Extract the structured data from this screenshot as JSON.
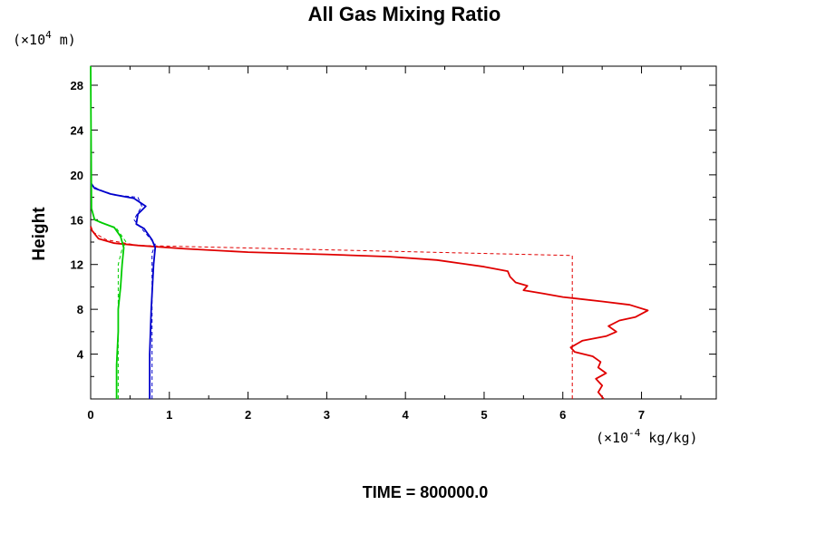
{
  "chart_data": {
    "type": "line",
    "title": "All Gas Mixing Ratio",
    "ylabel": "Height",
    "xlabel": "",
    "y_unit_prefix": "(×10",
    "y_unit_exp": "4",
    "y_unit_suffix": " m)",
    "x_unit_prefix": "(×10",
    "x_unit_exp": "-4",
    "x_unit_suffix": " kg/kg)",
    "footer": "TIME = 800000.0",
    "xlim": [
      0,
      7.95
    ],
    "ylim": [
      0,
      29.7
    ],
    "x_ticks": [
      "0",
      "1",
      "2",
      "3",
      "4",
      "5",
      "6",
      "7"
    ],
    "y_ticks": [
      "4",
      "8",
      "12",
      "16",
      "20",
      "24",
      "28"
    ],
    "grid": false,
    "legend": "none",
    "colors": {
      "red": "#e00000",
      "blue": "#0000cc",
      "green": "#00cc00",
      "axis": "#000000"
    },
    "series": [
      {
        "color": "#e00000",
        "style": "solid",
        "points": [
          [
            6.52,
            0
          ],
          [
            6.45,
            0.6
          ],
          [
            6.5,
            1.2
          ],
          [
            6.42,
            1.8
          ],
          [
            6.55,
            2.3
          ],
          [
            6.45,
            2.8
          ],
          [
            6.48,
            3.3
          ],
          [
            6.38,
            3.8
          ],
          [
            6.15,
            4.2
          ],
          [
            6.1,
            4.6
          ],
          [
            6.25,
            5.2
          ],
          [
            6.55,
            5.6
          ],
          [
            6.68,
            6.0
          ],
          [
            6.58,
            6.5
          ],
          [
            6.72,
            7.0
          ],
          [
            6.92,
            7.3
          ],
          [
            7.08,
            7.9
          ],
          [
            6.85,
            8.4
          ],
          [
            6.5,
            8.7
          ],
          [
            6.0,
            9.1
          ],
          [
            5.75,
            9.4
          ],
          [
            5.5,
            9.7
          ],
          [
            5.55,
            10.1
          ],
          [
            5.4,
            10.4
          ],
          [
            5.33,
            10.9
          ],
          [
            5.3,
            11.4
          ],
          [
            5.0,
            11.8
          ],
          [
            4.7,
            12.1
          ],
          [
            4.4,
            12.4
          ],
          [
            3.8,
            12.7
          ],
          [
            3.0,
            12.9
          ],
          [
            2.0,
            13.1
          ],
          [
            1.2,
            13.4
          ],
          [
            0.6,
            13.7
          ],
          [
            0.3,
            13.9
          ],
          [
            0.1,
            14.3
          ],
          [
            0.02,
            15.0
          ],
          [
            0.0,
            15.4
          ]
        ]
      },
      {
        "color": "#e00000",
        "style": "dashed",
        "points": [
          [
            6.12,
            0
          ],
          [
            6.12,
            12.8
          ],
          [
            0.6,
            13.7
          ],
          [
            0.2,
            14.2
          ],
          [
            0.05,
            14.8
          ],
          [
            0.0,
            15.2
          ]
        ]
      },
      {
        "color": "#0000cc",
        "style": "solid",
        "points": [
          [
            0.75,
            0
          ],
          [
            0.75,
            4
          ],
          [
            0.77,
            8
          ],
          [
            0.8,
            12
          ],
          [
            0.82,
            13.5
          ],
          [
            0.78,
            14.2
          ],
          [
            0.68,
            15.2
          ],
          [
            0.58,
            15.6
          ],
          [
            0.6,
            16.5
          ],
          [
            0.7,
            17.2
          ],
          [
            0.55,
            17.9
          ],
          [
            0.25,
            18.3
          ],
          [
            0.05,
            18.8
          ],
          [
            0.0,
            19.3
          ]
        ]
      },
      {
        "color": "#0000cc",
        "style": "dashed",
        "points": [
          [
            0.78,
            0
          ],
          [
            0.78,
            13.0
          ],
          [
            0.82,
            13.8
          ],
          [
            0.55,
            16.0
          ],
          [
            0.65,
            17.2
          ],
          [
            0.6,
            18.0
          ],
          [
            0.3,
            18.2
          ],
          [
            0.1,
            18.7
          ],
          [
            0.0,
            19.1
          ]
        ]
      },
      {
        "color": "#00cc00",
        "style": "solid",
        "points": [
          [
            0.33,
            0
          ],
          [
            0.33,
            3
          ],
          [
            0.35,
            6
          ],
          [
            0.35,
            8
          ],
          [
            0.38,
            10
          ],
          [
            0.4,
            12
          ],
          [
            0.42,
            13.5
          ],
          [
            0.38,
            14.5
          ],
          [
            0.3,
            15.3
          ],
          [
            0.15,
            15.7
          ],
          [
            0.05,
            16.0
          ],
          [
            0.01,
            17
          ],
          [
            0.0,
            29.7
          ]
        ]
      },
      {
        "color": "#00cc00",
        "style": "dashed",
        "points": [
          [
            0.35,
            0
          ],
          [
            0.35,
            12
          ],
          [
            0.4,
            13.4
          ],
          [
            0.45,
            14
          ],
          [
            0.32,
            15.3
          ],
          [
            0.1,
            15.8
          ],
          [
            0.0,
            16.2
          ]
        ]
      }
    ]
  }
}
